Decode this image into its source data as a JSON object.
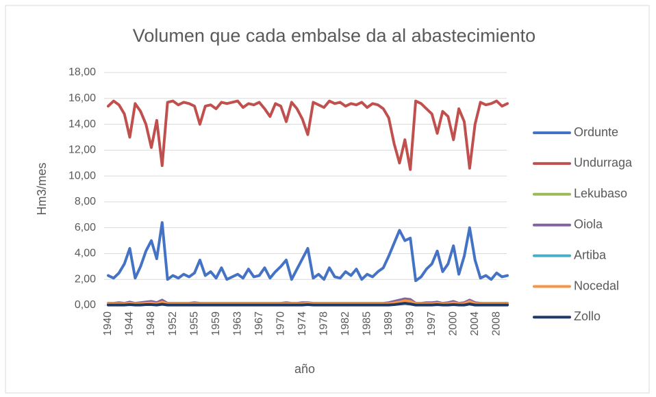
{
  "chart_data": {
    "type": "line",
    "title": "Volumen que cada embalse da al abastecimiento",
    "xlabel": "año",
    "ylabel": "Hm3/mes",
    "categories": [
      "1940",
      null,
      null,
      null,
      "1944",
      null,
      null,
      null,
      "1948",
      null,
      null,
      null,
      "1952",
      null,
      null,
      null,
      "1955",
      null,
      null,
      null,
      "1959",
      null,
      null,
      null,
      "1963",
      null,
      null,
      null,
      "1967",
      null,
      null,
      null,
      "1970",
      null,
      null,
      null,
      "1974",
      null,
      null,
      null,
      "1978",
      null,
      null,
      null,
      "1982",
      null,
      null,
      null,
      "1985",
      null,
      null,
      null,
      "1989",
      null,
      null,
      null,
      "1993",
      null,
      null,
      null,
      "1997",
      null,
      null,
      null,
      "2000",
      null,
      null,
      null,
      "2004",
      null,
      null,
      null,
      "2008",
      null,
      null
    ],
    "ylim": [
      0,
      18
    ],
    "yticks": [
      {
        "value": 0,
        "label": "0,00"
      },
      {
        "value": 2,
        "label": "2,00"
      },
      {
        "value": 4,
        "label": "4,00"
      },
      {
        "value": 6,
        "label": "6,00"
      },
      {
        "value": 8,
        "label": "8,00"
      },
      {
        "value": 10,
        "label": "10,00"
      },
      {
        "value": 12,
        "label": "12,00"
      },
      {
        "value": 14,
        "label": "14,00"
      },
      {
        "value": 16,
        "label": "16,00"
      },
      {
        "value": 18,
        "label": "18,00"
      }
    ],
    "grid": true,
    "legend": "right",
    "series": [
      {
        "name": "Ordunte",
        "color": "#4472c4",
        "values": [
          2.3,
          2.1,
          2.5,
          3.2,
          4.4,
          2.1,
          3.0,
          4.2,
          5.0,
          3.6,
          6.4,
          2.0,
          2.3,
          2.1,
          2.4,
          2.2,
          2.5,
          3.5,
          2.3,
          2.6,
          2.1,
          2.9,
          2.0,
          2.2,
          2.4,
          2.1,
          2.8,
          2.2,
          2.3,
          2.9,
          2.1,
          2.6,
          3.0,
          3.5,
          2.0,
          2.8,
          3.6,
          4.4,
          2.1,
          2.4,
          2.0,
          2.9,
          2.2,
          2.1,
          2.6,
          2.3,
          2.8,
          2.0,
          2.4,
          2.2,
          2.6,
          2.9,
          3.8,
          4.8,
          5.8,
          5.0,
          5.2,
          1.9,
          2.2,
          2.8,
          3.2,
          4.2,
          2.6,
          3.2,
          4.6,
          2.4,
          3.8,
          6.0,
          3.5,
          2.1,
          2.3,
          2.0,
          2.5,
          2.2,
          2.3
        ]
      },
      {
        "name": "Undurraga",
        "color": "#c0504d",
        "values": [
          15.4,
          15.8,
          15.5,
          14.8,
          13.0,
          15.6,
          15.0,
          14.0,
          12.2,
          14.3,
          10.8,
          15.7,
          15.8,
          15.5,
          15.7,
          15.6,
          15.4,
          14.0,
          15.4,
          15.5,
          15.2,
          15.7,
          15.6,
          15.7,
          15.8,
          15.3,
          15.6,
          15.5,
          15.7,
          15.2,
          14.6,
          15.6,
          15.4,
          14.2,
          15.7,
          15.2,
          14.4,
          13.2,
          15.7,
          15.5,
          15.3,
          15.8,
          15.6,
          15.7,
          15.4,
          15.6,
          15.5,
          15.7,
          15.3,
          15.6,
          15.5,
          15.2,
          14.5,
          12.5,
          11.0,
          12.8,
          10.5,
          15.8,
          15.6,
          15.2,
          14.8,
          13.3,
          15.0,
          14.6,
          12.8,
          15.2,
          14.2,
          10.6,
          14.0,
          15.7,
          15.5,
          15.6,
          15.8,
          15.4,
          15.6
        ]
      },
      {
        "name": "Lekubaso",
        "color": "#9bbb59",
        "values": [
          0.1,
          0.1,
          0.1,
          0.1,
          0.2,
          0.1,
          0.1,
          0.2,
          0.2,
          0.1,
          0.3,
          0.1,
          0.1,
          0.1,
          0.1,
          0.1,
          0.1,
          0.1,
          0.1,
          0.1,
          0.1,
          0.1,
          0.1,
          0.1,
          0.1,
          0.1,
          0.1,
          0.1,
          0.1,
          0.1,
          0.1,
          0.1,
          0.1,
          0.1,
          0.1,
          0.1,
          0.1,
          0.1,
          0.1,
          0.1,
          0.1,
          0.1,
          0.1,
          0.1,
          0.1,
          0.1,
          0.1,
          0.1,
          0.1,
          0.1,
          0.1,
          0.1,
          0.1,
          0.2,
          0.3,
          0.4,
          0.3,
          0.1,
          0.1,
          0.1,
          0.1,
          0.2,
          0.1,
          0.1,
          0.2,
          0.1,
          0.1,
          0.3,
          0.1,
          0.1,
          0.1,
          0.1,
          0.1,
          0.1,
          0.1
        ]
      },
      {
        "name": "Oiola",
        "color": "#8064a2",
        "values": [
          0.15,
          0.15,
          0.2,
          0.15,
          0.25,
          0.15,
          0.2,
          0.25,
          0.3,
          0.2,
          0.4,
          0.15,
          0.15,
          0.15,
          0.15,
          0.15,
          0.2,
          0.15,
          0.15,
          0.15,
          0.15,
          0.15,
          0.15,
          0.15,
          0.15,
          0.15,
          0.15,
          0.15,
          0.15,
          0.15,
          0.15,
          0.15,
          0.15,
          0.2,
          0.15,
          0.15,
          0.2,
          0.2,
          0.15,
          0.15,
          0.15,
          0.15,
          0.15,
          0.15,
          0.15,
          0.15,
          0.15,
          0.15,
          0.15,
          0.15,
          0.15,
          0.15,
          0.2,
          0.3,
          0.4,
          0.5,
          0.45,
          0.15,
          0.15,
          0.2,
          0.2,
          0.25,
          0.15,
          0.2,
          0.3,
          0.15,
          0.2,
          0.4,
          0.2,
          0.15,
          0.15,
          0.15,
          0.15,
          0.15,
          0.15
        ]
      },
      {
        "name": "Artiba",
        "color": "#4bacc6",
        "values": [
          0.05,
          0.05,
          0.05,
          0.05,
          0.1,
          0.05,
          0.05,
          0.1,
          0.1,
          0.05,
          0.15,
          0.05,
          0.05,
          0.05,
          0.05,
          0.05,
          0.05,
          0.05,
          0.05,
          0.05,
          0.05,
          0.05,
          0.05,
          0.05,
          0.05,
          0.05,
          0.05,
          0.05,
          0.05,
          0.05,
          0.05,
          0.05,
          0.05,
          0.05,
          0.05,
          0.05,
          0.05,
          0.1,
          0.05,
          0.05,
          0.05,
          0.05,
          0.05,
          0.05,
          0.05,
          0.05,
          0.05,
          0.05,
          0.05,
          0.05,
          0.05,
          0.05,
          0.05,
          0.1,
          0.2,
          0.25,
          0.2,
          0.05,
          0.05,
          0.05,
          0.05,
          0.1,
          0.05,
          0.05,
          0.1,
          0.05,
          0.05,
          0.2,
          0.05,
          0.05,
          0.05,
          0.05,
          0.05,
          0.05,
          0.05
        ]
      },
      {
        "name": "Nocedal",
        "color": "#f79646",
        "values": [
          0.12,
          0.12,
          0.12,
          0.12,
          0.15,
          0.12,
          0.12,
          0.15,
          0.18,
          0.12,
          0.25,
          0.12,
          0.12,
          0.12,
          0.12,
          0.12,
          0.12,
          0.12,
          0.12,
          0.12,
          0.12,
          0.12,
          0.12,
          0.12,
          0.12,
          0.12,
          0.12,
          0.12,
          0.12,
          0.12,
          0.12,
          0.12,
          0.12,
          0.12,
          0.12,
          0.12,
          0.12,
          0.15,
          0.12,
          0.12,
          0.12,
          0.12,
          0.12,
          0.12,
          0.12,
          0.12,
          0.12,
          0.12,
          0.12,
          0.12,
          0.12,
          0.12,
          0.12,
          0.18,
          0.25,
          0.35,
          0.3,
          0.12,
          0.12,
          0.12,
          0.12,
          0.15,
          0.12,
          0.12,
          0.18,
          0.12,
          0.12,
          0.3,
          0.12,
          0.12,
          0.12,
          0.12,
          0.12,
          0.12,
          0.12
        ]
      },
      {
        "name": "Zollo",
        "color": "#1f3864",
        "values": [
          0.02,
          0.02,
          0.02,
          0.02,
          0.05,
          0.02,
          0.02,
          0.05,
          0.05,
          0.02,
          0.08,
          0.02,
          0.02,
          0.02,
          0.02,
          0.02,
          0.02,
          0.02,
          0.02,
          0.02,
          0.02,
          0.02,
          0.02,
          0.02,
          0.02,
          0.02,
          0.02,
          0.02,
          0.02,
          0.02,
          0.02,
          0.02,
          0.02,
          0.02,
          0.02,
          0.02,
          0.02,
          0.05,
          0.02,
          0.02,
          0.02,
          0.02,
          0.02,
          0.02,
          0.02,
          0.02,
          0.02,
          0.02,
          0.02,
          0.02,
          0.02,
          0.02,
          0.02,
          0.05,
          0.1,
          0.15,
          0.1,
          0.02,
          0.02,
          0.02,
          0.02,
          0.05,
          0.02,
          0.02,
          0.05,
          0.02,
          0.02,
          0.1,
          0.02,
          0.02,
          0.02,
          0.02,
          0.02,
          0.02,
          0.02
        ]
      }
    ]
  }
}
